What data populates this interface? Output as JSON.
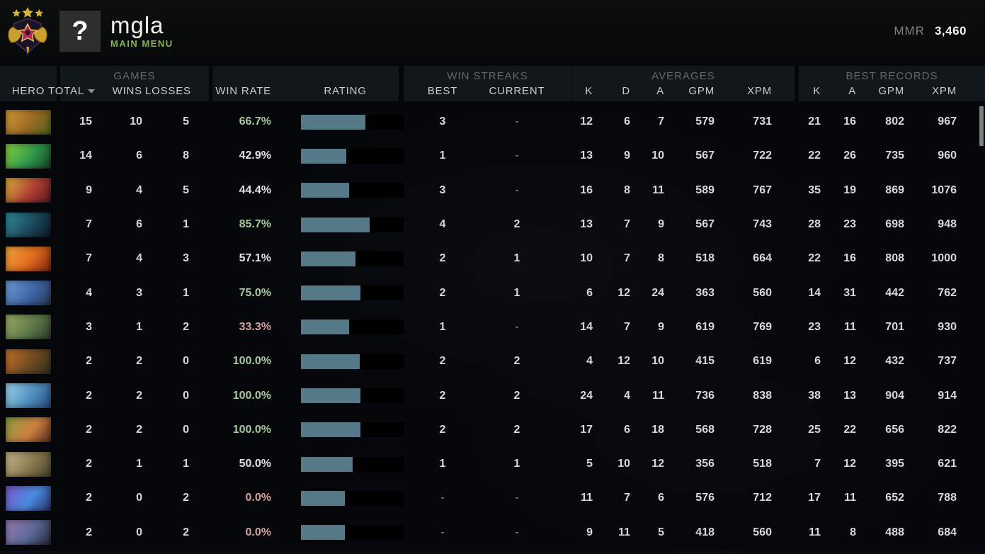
{
  "header": {
    "player_name": "mgla",
    "menu_label": "MAIN MENU",
    "avatar_glyph": "?",
    "mmr_label": "MMR",
    "mmr_value": "3,460"
  },
  "table": {
    "group_labels": {
      "games": "GAMES",
      "win_streaks": "WIN STREAKS",
      "averages": "AVERAGES",
      "best_records": "BEST RECORDS"
    },
    "columns": {
      "hero": "HERO",
      "total": "TOTAL",
      "wins": "WINS",
      "losses": "LOSSES",
      "win_rate": "WIN RATE",
      "rating": "RATING",
      "best": "BEST",
      "current": "CURRENT",
      "k": "K",
      "d": "D",
      "a": "A",
      "gpm": "GPM",
      "xpm": "XPM",
      "rec_k": "K",
      "rec_a": "A",
      "rec_gpm": "GPM",
      "rec_xpm": "XPM"
    },
    "sorted_by": "total",
    "rows": [
      {
        "portrait": [
          "#d79b3a",
          "#9a6a24",
          "#4a6318"
        ],
        "total": "15",
        "wins": "10",
        "losses": "5",
        "win_rate": "66.7%",
        "win_rate_color": "green",
        "rating_pct": 63,
        "best": "3",
        "current": "-",
        "k": "12",
        "d": "6",
        "a": "7",
        "gpm": "579",
        "xpm": "731",
        "rec_k": "21",
        "rec_a": "16",
        "rec_gpm": "802",
        "rec_xpm": "967"
      },
      {
        "portrait": [
          "#8bd23e",
          "#2f9a4e",
          "#14401f"
        ],
        "total": "14",
        "wins": "6",
        "losses": "8",
        "win_rate": "42.9%",
        "win_rate_color": "white",
        "rating_pct": 44,
        "best": "1",
        "current": "-",
        "k": "13",
        "d": "9",
        "a": "10",
        "gpm": "567",
        "xpm": "722",
        "rec_k": "22",
        "rec_a": "26",
        "rec_gpm": "735",
        "rec_xpm": "960"
      },
      {
        "portrait": [
          "#e0b33c",
          "#b04034",
          "#56161f"
        ],
        "total": "9",
        "wins": "4",
        "losses": "5",
        "win_rate": "44.4%",
        "win_rate_color": "white",
        "rating_pct": 47,
        "best": "3",
        "current": "-",
        "k": "16",
        "d": "8",
        "a": "11",
        "gpm": "589",
        "xpm": "767",
        "rec_k": "35",
        "rec_a": "19",
        "rec_gpm": "869",
        "rec_xpm": "1076"
      },
      {
        "portrait": [
          "#2e8fa0",
          "#1d4a5c",
          "#0b1826"
        ],
        "total": "7",
        "wins": "6",
        "losses": "1",
        "win_rate": "85.7%",
        "win_rate_color": "green",
        "rating_pct": 67,
        "best": "4",
        "current": "2",
        "k": "13",
        "d": "7",
        "a": "9",
        "gpm": "567",
        "xpm": "743",
        "rec_k": "28",
        "rec_a": "23",
        "rec_gpm": "698",
        "rec_xpm": "948"
      },
      {
        "portrait": [
          "#f4a83c",
          "#e06a1f",
          "#7c2610"
        ],
        "total": "7",
        "wins": "4",
        "losses": "3",
        "win_rate": "57.1%",
        "win_rate_color": "white",
        "rating_pct": 53,
        "best": "2",
        "current": "1",
        "k": "10",
        "d": "7",
        "a": "8",
        "gpm": "518",
        "xpm": "664",
        "rec_k": "22",
        "rec_a": "16",
        "rec_gpm": "808",
        "rec_xpm": "1000"
      },
      {
        "portrait": [
          "#6f9fd8",
          "#3f66a8",
          "#2a3550"
        ],
        "total": "4",
        "wins": "3",
        "losses": "1",
        "win_rate": "75.0%",
        "win_rate_color": "green",
        "rating_pct": 58,
        "best": "2",
        "current": "1",
        "k": "6",
        "d": "12",
        "a": "24",
        "gpm": "363",
        "xpm": "560",
        "rec_k": "14",
        "rec_a": "31",
        "rec_gpm": "442",
        "rec_xpm": "762"
      },
      {
        "portrait": [
          "#9fae6a",
          "#5f7a4a",
          "#2c3a28"
        ],
        "total": "3",
        "wins": "1",
        "losses": "2",
        "win_rate": "33.3%",
        "win_rate_color": "red",
        "rating_pct": 47,
        "best": "1",
        "current": "-",
        "k": "14",
        "d": "7",
        "a": "9",
        "gpm": "619",
        "xpm": "769",
        "rec_k": "23",
        "rec_a": "11",
        "rec_gpm": "701",
        "rec_xpm": "930"
      },
      {
        "portrait": [
          "#c8742a",
          "#6f4a22",
          "#2e3020"
        ],
        "total": "2",
        "wins": "2",
        "losses": "0",
        "win_rate": "100.0%",
        "win_rate_color": "green",
        "rating_pct": 57,
        "best": "2",
        "current": "2",
        "k": "4",
        "d": "12",
        "a": "10",
        "gpm": "415",
        "xpm": "619",
        "rec_k": "6",
        "rec_a": "12",
        "rec_gpm": "432",
        "rec_xpm": "737"
      },
      {
        "portrait": [
          "#9fd8f0",
          "#4f8fc0",
          "#27457c"
        ],
        "total": "2",
        "wins": "2",
        "losses": "0",
        "win_rate": "100.0%",
        "win_rate_color": "green",
        "rating_pct": 58,
        "best": "2",
        "current": "2",
        "k": "24",
        "d": "4",
        "a": "11",
        "gpm": "736",
        "xpm": "838",
        "rec_k": "38",
        "rec_a": "13",
        "rec_gpm": "904",
        "rec_xpm": "914"
      },
      {
        "portrait": [
          "#8aa040",
          "#d08040",
          "#5a3020"
        ],
        "total": "2",
        "wins": "2",
        "losses": "0",
        "win_rate": "100.0%",
        "win_rate_color": "green",
        "rating_pct": 58,
        "best": "2",
        "current": "2",
        "k": "17",
        "d": "6",
        "a": "18",
        "gpm": "568",
        "xpm": "728",
        "rec_k": "25",
        "rec_a": "22",
        "rec_gpm": "656",
        "rec_xpm": "822"
      },
      {
        "portrait": [
          "#c8b890",
          "#8a7a50",
          "#46402e"
        ],
        "total": "2",
        "wins": "1",
        "losses": "1",
        "win_rate": "50.0%",
        "win_rate_color": "white",
        "rating_pct": 50,
        "best": "1",
        "current": "1",
        "k": "5",
        "d": "10",
        "a": "12",
        "gpm": "356",
        "xpm": "518",
        "rec_k": "7",
        "rec_a": "12",
        "rec_gpm": "395",
        "rec_xpm": "621"
      },
      {
        "portrait": [
          "#7a5ac8",
          "#4a8ae0",
          "#283068"
        ],
        "total": "2",
        "wins": "0",
        "losses": "2",
        "win_rate": "0.0%",
        "win_rate_color": "red",
        "rating_pct": 43,
        "best": "-",
        "current": "-",
        "k": "11",
        "d": "7",
        "a": "6",
        "gpm": "576",
        "xpm": "712",
        "rec_k": "17",
        "rec_a": "11",
        "rec_gpm": "652",
        "rec_xpm": "788"
      },
      {
        "portrait": [
          "#9a7ab0",
          "#5a6a9a",
          "#262638"
        ],
        "total": "2",
        "wins": "0",
        "losses": "2",
        "win_rate": "0.0%",
        "win_rate_color": "red",
        "rating_pct": 43,
        "best": "-",
        "current": "-",
        "k": "9",
        "d": "11",
        "a": "5",
        "gpm": "418",
        "xpm": "560",
        "rec_k": "11",
        "rec_a": "8",
        "rec_gpm": "488",
        "rec_xpm": "684"
      }
    ]
  },
  "colors": {
    "accent_green": "#82b54e",
    "bar_fill": "#56798a",
    "win_green": "#a5ca9b",
    "win_red": "#d6a09c",
    "win_white": "#e2e2e2",
    "panel_bg": "#11161a"
  }
}
